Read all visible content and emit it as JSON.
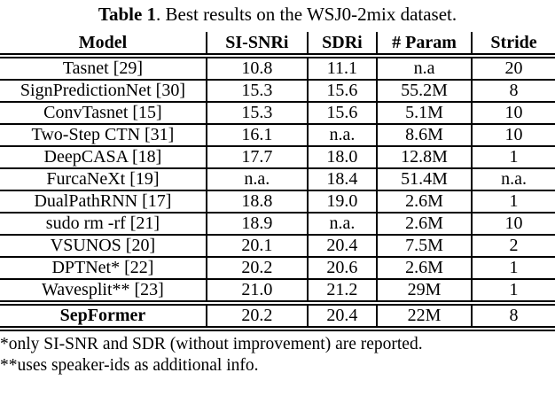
{
  "caption": {
    "label": "Table 1",
    "text": ". Best results on the WSJ0-2mix dataset."
  },
  "table": {
    "columns": [
      "Model",
      "SI-SNRi",
      "SDRi",
      "# Param",
      "Stride"
    ],
    "rows": [
      {
        "cells": [
          "Tasnet [29]",
          "10.8",
          "11.1",
          "n.a",
          "20"
        ],
        "highlight": false
      },
      {
        "cells": [
          "SignPredictionNet [30]",
          "15.3",
          "15.6",
          "55.2M",
          "8"
        ],
        "highlight": false
      },
      {
        "cells": [
          "ConvTasnet [15]",
          "15.3",
          "15.6",
          "5.1M",
          "10"
        ],
        "highlight": false
      },
      {
        "cells": [
          "Two-Step CTN [31]",
          "16.1",
          "n.a.",
          "8.6M",
          "10"
        ],
        "highlight": false
      },
      {
        "cells": [
          "DeepCASA [18]",
          "17.7",
          "18.0",
          "12.8M",
          "1"
        ],
        "highlight": false
      },
      {
        "cells": [
          "FurcaNeXt [19]",
          "n.a.",
          "18.4",
          "51.4M",
          "n.a."
        ],
        "highlight": false
      },
      {
        "cells": [
          "DualPathRNN [17]",
          "18.8",
          "19.0",
          "2.6M",
          "1"
        ],
        "highlight": false
      },
      {
        "cells": [
          "sudo rm -rf [21]",
          "18.9",
          "n.a.",
          "2.6M",
          "10"
        ],
        "highlight": false
      },
      {
        "cells": [
          "VSUNOS [20]",
          "20.1",
          "20.4",
          "7.5M",
          "2"
        ],
        "highlight": false
      },
      {
        "cells": [
          "DPTNet* [22]",
          "20.2",
          "20.6",
          "2.6M",
          "1"
        ],
        "highlight": false
      },
      {
        "cells": [
          "Wavesplit** [23]",
          "21.0",
          "21.2",
          "29M",
          "1"
        ],
        "highlight": false
      },
      {
        "cells": [
          "SepFormer",
          "20.2",
          "20.4",
          "22M",
          "8"
        ],
        "highlight": true
      }
    ],
    "footnotes": [
      "*only SI-SNR and SDR (without improvement) are reported.",
      "**uses speaker-ids as additional info."
    ]
  }
}
